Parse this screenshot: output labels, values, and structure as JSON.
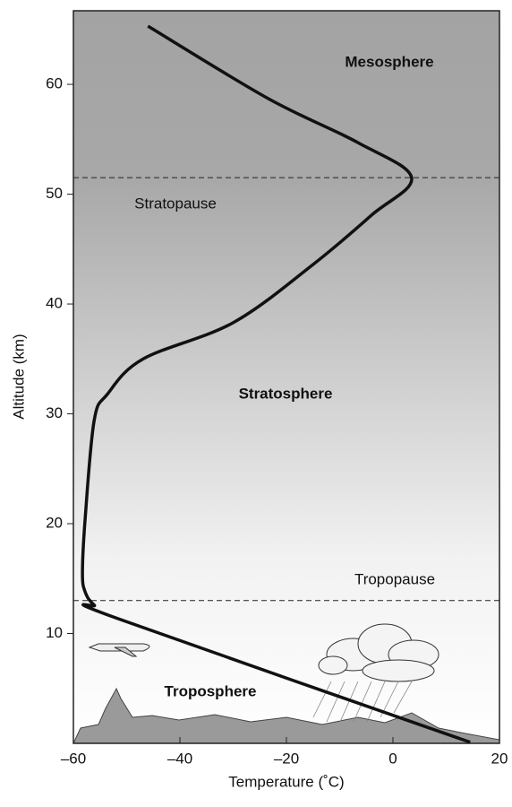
{
  "chart_data": {
    "type": "line",
    "x_label": "Temperature (˚C)",
    "y_label": "Altitude (km)",
    "x": [
      -46.0,
      -23.4,
      -6.6,
      3.5,
      -4.0,
      -15.0,
      -30.0,
      -46.9,
      -53.6,
      -56.1,
      -57.8,
      -58.3,
      -57.8,
      -56.1,
      -51.9,
      14.5
    ],
    "values": [
      65.3,
      58.7,
      54.7,
      51.5,
      48.1,
      43.6,
      38.3,
      35.0,
      31.8,
      29.4,
      20.4,
      15.5,
      13.8,
      12.6,
      11.4,
      0.1
    ],
    "color": "#111111",
    "xlim": [
      -60,
      20
    ],
    "xticks": [
      {
        "value": -60,
        "label": "–60"
      },
      {
        "value": -40,
        "label": "–40"
      },
      {
        "value": -20,
        "label": "–20"
      },
      0,
      20
    ],
    "ylim": [
      0,
      66.7
    ],
    "yticks": [
      10,
      20,
      30,
      40,
      50,
      60
    ],
    "hlines": [
      51.5,
      13
    ],
    "annotations": [
      "Mesosphere",
      "Stratopause",
      "Stratosphere",
      "Tropopause",
      "Troposphere"
    ]
  }
}
